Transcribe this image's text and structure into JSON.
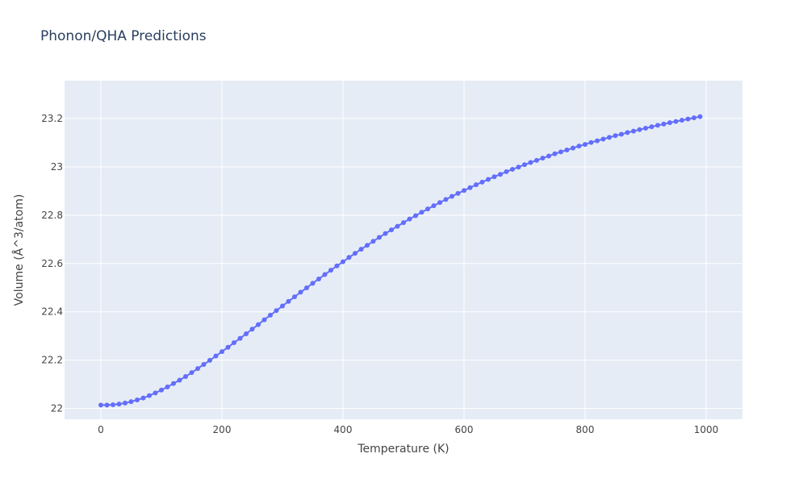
{
  "chart_data": {
    "type": "line",
    "title": "Phonon/QHA Predictions",
    "xlabel": "Temperature (K)",
    "ylabel": "Volume (Å^3/atom)",
    "xlim": [
      -60,
      1060
    ],
    "ylim": [
      21.955,
      23.357
    ],
    "x_ticks": [
      0,
      200,
      400,
      600,
      800,
      1000
    ],
    "y_ticks": [
      22,
      22.2,
      22.4,
      22.6,
      22.8,
      23,
      23.2
    ],
    "x_tick_labels": [
      "0",
      "200",
      "400",
      "600",
      "800",
      "1000"
    ],
    "y_tick_labels": [
      "22",
      "22.2",
      "22.4",
      "22.6",
      "22.8",
      "23",
      "23.2"
    ],
    "grid": true,
    "legend": "none",
    "colors": {
      "plot_bg": "#e5ecf6",
      "grid": "#ffffff",
      "series": "#636efa",
      "text": "#444444",
      "title": "#2a3f5f"
    },
    "series": [
      {
        "marker": "circle",
        "x": [
          0,
          10,
          20,
          30,
          40,
          50,
          60,
          70,
          80,
          90,
          100,
          110,
          120,
          130,
          140,
          150,
          160,
          170,
          180,
          190,
          200,
          210,
          220,
          230,
          240,
          250,
          260,
          270,
          280,
          290,
          300,
          310,
          320,
          330,
          340,
          350,
          360,
          370,
          380,
          390,
          400,
          410,
          420,
          430,
          440,
          450,
          460,
          470,
          480,
          490,
          500,
          510,
          520,
          530,
          540,
          550,
          560,
          570,
          580,
          590,
          600,
          610,
          620,
          630,
          640,
          650,
          660,
          670,
          680,
          690,
          700,
          710,
          720,
          730,
          740,
          750,
          760,
          770,
          780,
          790,
          800,
          810,
          820,
          830,
          840,
          850,
          860,
          870,
          880,
          890,
          900,
          910,
          920,
          930,
          940,
          950,
          960,
          970,
          980,
          990
        ],
        "y": [
          22.014,
          22.014,
          22.015,
          22.018,
          22.022,
          22.028,
          22.035,
          22.043,
          22.053,
          22.064,
          22.076,
          22.089,
          22.103,
          22.117,
          22.132,
          22.148,
          22.165,
          22.182,
          22.199,
          22.217,
          22.235,
          22.253,
          22.272,
          22.29,
          22.309,
          22.328,
          22.347,
          22.367,
          22.386,
          22.405,
          22.424,
          22.443,
          22.462,
          22.481,
          22.499,
          22.518,
          22.536,
          22.554,
          22.572,
          22.59,
          22.607,
          22.625,
          22.642,
          22.659,
          22.675,
          22.692,
          22.708,
          22.724,
          22.739,
          22.754,
          22.769,
          22.784,
          22.798,
          22.812,
          22.826,
          22.839,
          22.852,
          22.865,
          22.878,
          22.89,
          22.902,
          22.914,
          22.926,
          22.937,
          22.948,
          22.959,
          22.969,
          22.98,
          22.99,
          22.999,
          23.009,
          23.018,
          23.027,
          23.036,
          23.045,
          23.054,
          23.062,
          23.07,
          23.078,
          23.086,
          23.093,
          23.101,
          23.108,
          23.115,
          23.122,
          23.129,
          23.135,
          23.142,
          23.148,
          23.154,
          23.16,
          23.166,
          23.172,
          23.177,
          23.183,
          23.188,
          23.193,
          23.198,
          23.203,
          23.208
        ]
      }
    ]
  }
}
